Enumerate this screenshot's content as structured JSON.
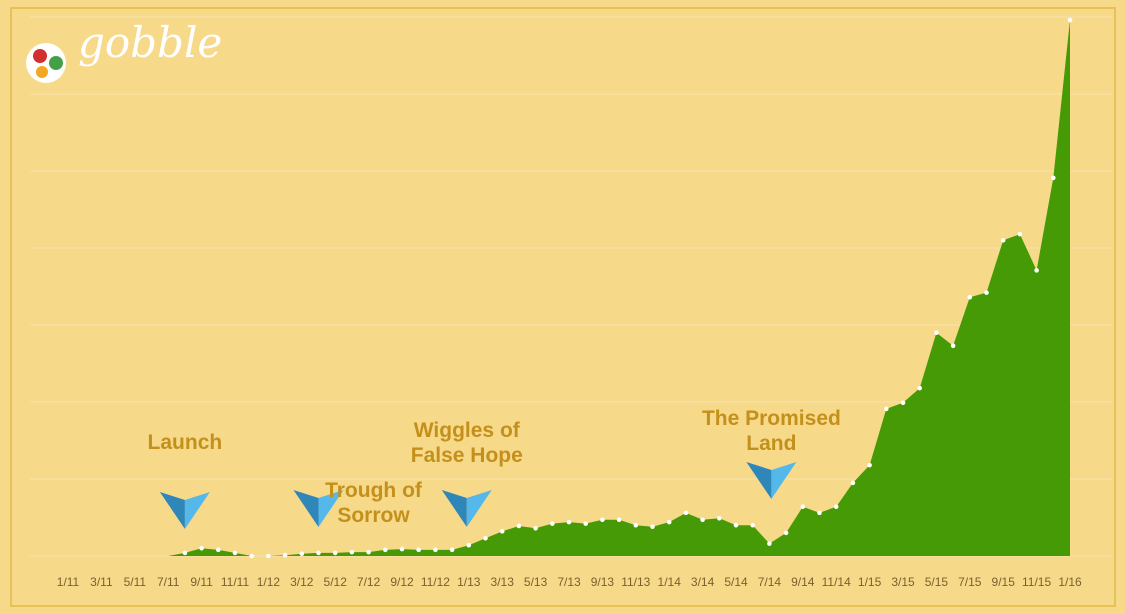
{
  "logo": "gobble",
  "chart_data": {
    "type": "area",
    "categories": [
      "1/11",
      null,
      "3/11",
      null,
      "5/11",
      null,
      "7/11",
      null,
      "9/11",
      null,
      "11/11",
      null,
      "1/12",
      null,
      "3/12",
      null,
      "5/12",
      null,
      "7/12",
      null,
      "9/12",
      null,
      "11/12",
      null,
      "1/13",
      null,
      "3/13",
      null,
      "5/13",
      null,
      "7/13",
      null,
      "9/13",
      null,
      "11/13",
      null,
      "1/14",
      null,
      "3/14",
      null,
      "5/14",
      null,
      "7/14",
      null,
      "9/14",
      null,
      "11/14",
      null,
      "1/15",
      null,
      "3/15",
      null,
      "5/15",
      null,
      "7/15",
      null,
      "9/15",
      null,
      "11/15",
      null,
      "1/16"
    ],
    "values": [
      null,
      null,
      null,
      null,
      null,
      null,
      0,
      0.04,
      0.1,
      0.08,
      0.04,
      0,
      0,
      0.01,
      0.03,
      0.04,
      0.04,
      0.05,
      0.05,
      0.08,
      0.09,
      0.08,
      0.08,
      0.08,
      0.14,
      0.23,
      0.32,
      0.39,
      0.36,
      0.42,
      0.44,
      0.42,
      0.47,
      0.47,
      0.4,
      0.38,
      0.44,
      0.56,
      0.47,
      0.49,
      0.4,
      0.4,
      0.16,
      0.3,
      0.64,
      0.56,
      0.64,
      0.95,
      1.18,
      1.91,
      1.99,
      2.18,
      2.9,
      2.73,
      3.36,
      3.42,
      4.1,
      4.18,
      3.71,
      4.91,
      6.96
    ],
    "color": "#459a06",
    "ylim": [
      0,
      7
    ],
    "yticks": [
      0,
      1,
      2,
      3,
      4,
      5,
      6,
      7
    ],
    "grid": true,
    "annotations": [
      {
        "text": "Launch",
        "category": 7
      },
      {
        "text": "Trough of Sorrow",
        "category": 15
      },
      {
        "text": "Wiggles of False Hope",
        "category": 24
      },
      {
        "text": "The Promised Land",
        "category": 42
      }
    ]
  }
}
